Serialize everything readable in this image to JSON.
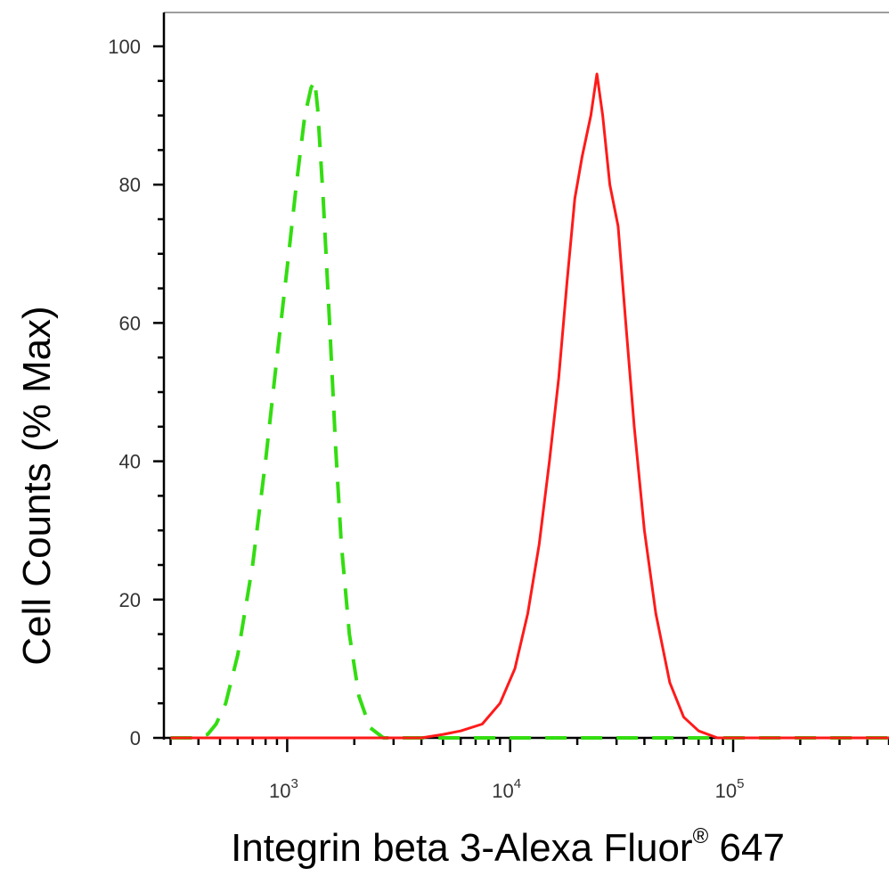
{
  "chart_data": {
    "type": "line",
    "title": "",
    "xlabel": "Integrin beta 3-Alexa Fluor",
    "xlabel_superscript": "®",
    "xlabel_suffix": " 647",
    "ylabel": "Cell Counts (% Max)",
    "x_scale": "log",
    "xlim": [
      280,
      500000
    ],
    "ylim": [
      0,
      105
    ],
    "y_ticks": [
      0,
      20,
      40,
      60,
      80,
      100
    ],
    "y_tick_labels": [
      "0",
      "20",
      "40",
      "60",
      "80",
      "100"
    ],
    "x_major_ticks": [
      1000,
      10000,
      100000
    ],
    "x_tick_labels": [
      {
        "base": "10",
        "exp": "3"
      },
      {
        "base": "10",
        "exp": "4"
      },
      {
        "base": "10",
        "exp": "5"
      }
    ],
    "grid": false,
    "series": [
      {
        "color": "#33dd11",
        "style": "dashed",
        "points": [
          [
            300,
            0
          ],
          [
            380,
            0
          ],
          [
            440,
            0.5
          ],
          [
            480,
            2
          ],
          [
            530,
            5
          ],
          [
            600,
            12
          ],
          [
            700,
            25
          ],
          [
            800,
            40
          ],
          [
            900,
            55
          ],
          [
            1000,
            68
          ],
          [
            1100,
            80
          ],
          [
            1200,
            90
          ],
          [
            1280,
            94
          ],
          [
            1330,
            95
          ],
          [
            1370,
            91
          ],
          [
            1450,
            78
          ],
          [
            1550,
            60
          ],
          [
            1650,
            42
          ],
          [
            1750,
            28
          ],
          [
            1900,
            15
          ],
          [
            2100,
            6
          ],
          [
            2350,
            1.5
          ],
          [
            2700,
            0
          ],
          [
            5000,
            0
          ],
          [
            20000,
            0
          ],
          [
            100000,
            0
          ],
          [
            500000,
            0
          ]
        ]
      },
      {
        "color": "#ff1a1a",
        "style": "solid",
        "points": [
          [
            300,
            0
          ],
          [
            4000,
            0
          ],
          [
            5000,
            0.5
          ],
          [
            6000,
            1
          ],
          [
            7500,
            2
          ],
          [
            9000,
            5
          ],
          [
            10500,
            10
          ],
          [
            12000,
            18
          ],
          [
            13500,
            28
          ],
          [
            15000,
            40
          ],
          [
            16500,
            52
          ],
          [
            18000,
            66
          ],
          [
            19500,
            78
          ],
          [
            21000,
            84
          ],
          [
            23000,
            90
          ],
          [
            24500,
            96
          ],
          [
            26000,
            90
          ],
          [
            28000,
            80
          ],
          [
            30500,
            74
          ],
          [
            33000,
            60
          ],
          [
            36000,
            45
          ],
          [
            40000,
            30
          ],
          [
            45000,
            18
          ],
          [
            52000,
            8
          ],
          [
            60000,
            3
          ],
          [
            70000,
            1
          ],
          [
            85000,
            0
          ],
          [
            500000,
            0
          ]
        ]
      }
    ]
  }
}
